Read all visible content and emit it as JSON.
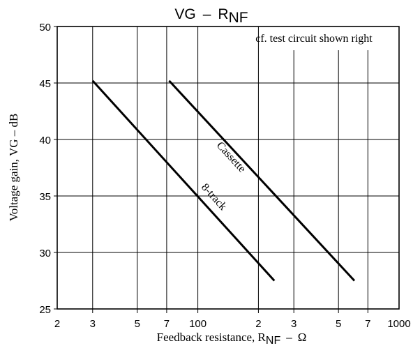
{
  "chart_data": {
    "type": "line",
    "title": {
      "main": "VG",
      "dash": "–",
      "sym": "R",
      "sub": "NF"
    },
    "xlabel": {
      "text": "Feedback resistance, R",
      "sub": "NF",
      "dash": "–",
      "unit": "Ω"
    },
    "ylabel": "Voltage gain, VG  –  dB",
    "x_scale": "log",
    "xlim": [
      20,
      1000
    ],
    "ylim": [
      25,
      50
    ],
    "x_ticks": [
      {
        "value": 20,
        "label": "2"
      },
      {
        "value": 30,
        "label": "3"
      },
      {
        "value": 50,
        "label": "5"
      },
      {
        "value": 70,
        "label": "7"
      },
      {
        "value": 100,
        "label": "100"
      },
      {
        "value": 200,
        "label": "2"
      },
      {
        "value": 300,
        "label": "3"
      },
      {
        "value": 500,
        "label": "5"
      },
      {
        "value": 700,
        "label": "7"
      },
      {
        "value": 1000,
        "label": "1000"
      }
    ],
    "y_ticks": [
      {
        "value": 25,
        "label": "25"
      },
      {
        "value": 30,
        "label": "30"
      },
      {
        "value": 35,
        "label": "35"
      },
      {
        "value": 40,
        "label": "40"
      },
      {
        "value": 45,
        "label": "45"
      },
      {
        "value": 50,
        "label": "50"
      }
    ],
    "grid": true,
    "annotation": "cf. test circuit shown right",
    "series": [
      {
        "name": "8-track",
        "x": [
          30,
          240
        ],
        "y": [
          45.2,
          27.5
        ]
      },
      {
        "name": "Cassette",
        "x": [
          72,
          600
        ],
        "y": [
          45.2,
          27.5
        ]
      }
    ]
  }
}
